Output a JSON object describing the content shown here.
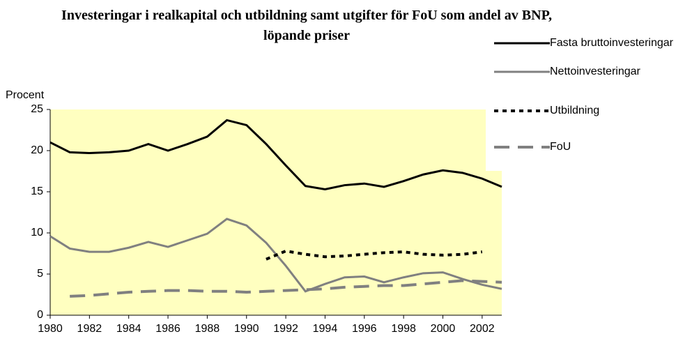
{
  "chart_data": {
    "type": "line",
    "title": "Investeringar i realkapital och utbildning samt utgifter för FoU som andel av BNP, löpande priser",
    "ylabel": "Procent",
    "x": [
      1980,
      1981,
      1982,
      1983,
      1984,
      1985,
      1986,
      1987,
      1988,
      1989,
      1990,
      1991,
      1992,
      1993,
      1994,
      1995,
      1996,
      1997,
      1998,
      1999,
      2000,
      2001,
      2002,
      2003
    ],
    "xlim": [
      1980,
      2003
    ],
    "xticks": [
      1980,
      1982,
      1984,
      1986,
      1988,
      1990,
      1992,
      1994,
      1996,
      1998,
      2000,
      2002
    ],
    "ylim": [
      0,
      25
    ],
    "yticks": [
      0,
      5,
      10,
      15,
      20,
      25
    ],
    "legend": "right",
    "series": [
      {
        "name": "Fasta bruttoinvesteringar",
        "color": "#000000",
        "dash": "solid",
        "values": [
          21.0,
          19.8,
          19.7,
          19.8,
          20.0,
          20.8,
          20.0,
          20.8,
          21.7,
          23.7,
          23.1,
          20.8,
          18.2,
          15.7,
          15.3,
          15.8,
          16.0,
          15.6,
          16.3,
          17.1,
          17.6,
          17.3,
          16.6,
          15.6
        ]
      },
      {
        "name": "Nettoinvesteringar",
        "color": "#808080",
        "dash": "solid",
        "values": [
          9.6,
          8.1,
          7.7,
          7.7,
          8.2,
          8.9,
          8.3,
          9.1,
          9.9,
          11.7,
          10.9,
          8.8,
          6.0,
          2.9,
          3.8,
          4.6,
          4.7,
          4.0,
          4.6,
          5.1,
          5.2,
          4.4,
          3.7,
          3.2
        ]
      },
      {
        "name": "Utbildning",
        "color": "#000000",
        "dash": "dotted",
        "values": [
          null,
          null,
          null,
          null,
          null,
          null,
          null,
          null,
          null,
          null,
          null,
          6.8,
          7.8,
          7.4,
          7.1,
          7.2,
          7.4,
          7.6,
          7.7,
          7.4,
          7.3,
          7.4,
          7.7,
          null
        ]
      },
      {
        "name": "FoU",
        "color": "#808080",
        "dash": "dashed",
        "values": [
          null,
          2.3,
          2.4,
          2.6,
          2.8,
          2.9,
          3.0,
          3.0,
          2.9,
          2.9,
          2.8,
          2.9,
          3.0,
          3.1,
          3.2,
          3.4,
          3.5,
          3.6,
          3.6,
          3.8,
          4.0,
          4.2,
          4.1,
          4.0
        ]
      }
    ]
  }
}
